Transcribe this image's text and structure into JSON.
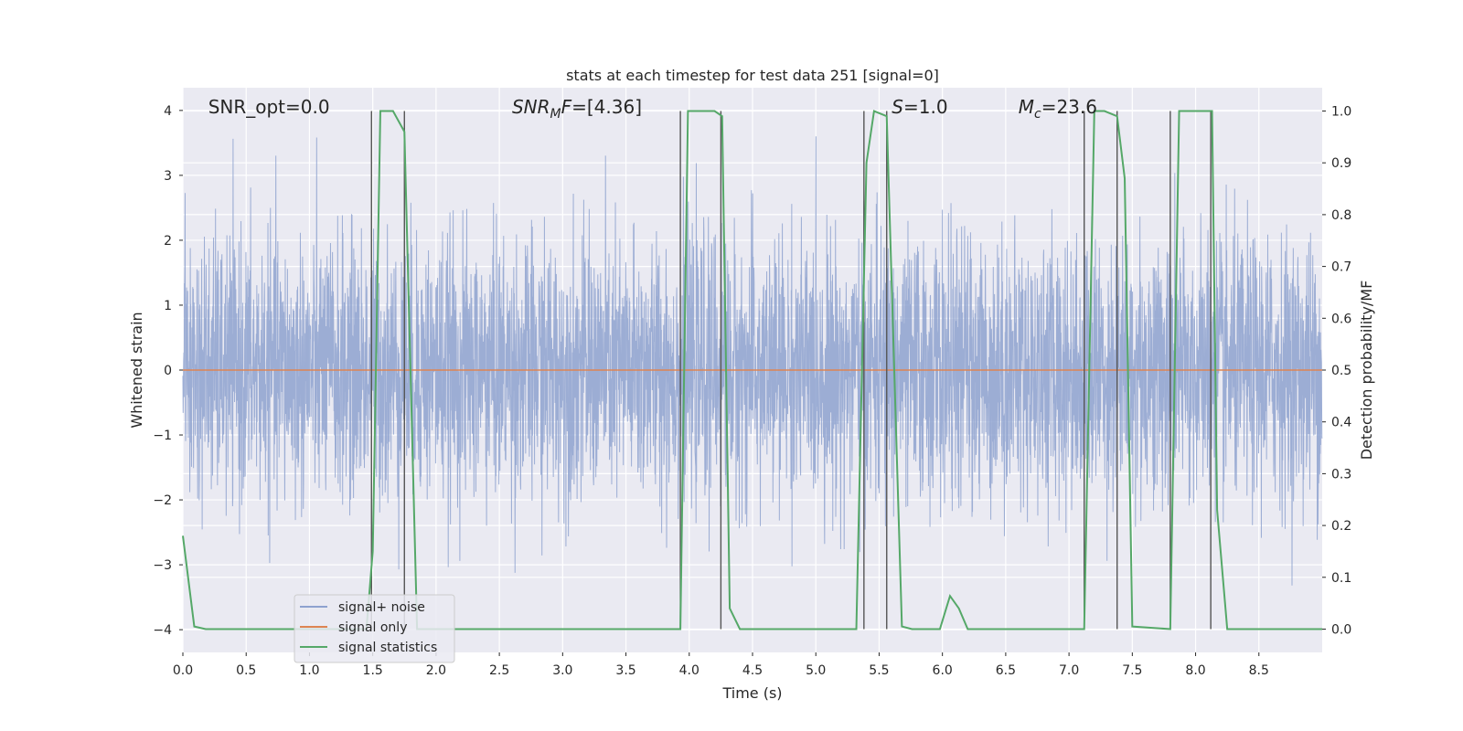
{
  "chart_data": {
    "type": "line",
    "title": "stats at each timestep for test data 251 [signal=0]",
    "xlabel": "Time (s)",
    "ylabel": "Whitened strain",
    "ylabel_right": "Detection probability/MF",
    "xlim": [
      0.0,
      9.0
    ],
    "ylim": [
      -4.35,
      4.35
    ],
    "ylim_right": [
      -0.045,
      1.045
    ],
    "x_ticks": [
      0.0,
      0.5,
      1.0,
      1.5,
      2.0,
      2.5,
      3.0,
      3.5,
      4.0,
      4.5,
      5.0,
      5.5,
      6.0,
      6.5,
      7.0,
      7.5,
      8.0,
      8.5
    ],
    "x_tick_labels": [
      "0.0",
      "0.5",
      "1.0",
      "1.5",
      "2.0",
      "2.5",
      "3.0",
      "3.5",
      "4.0",
      "4.5",
      "5.0",
      "5.5",
      "6.0",
      "6.5",
      "7.0",
      "7.5",
      "8.0",
      "8.5"
    ],
    "y_ticks": [
      4,
      3,
      2,
      1,
      0,
      -1,
      -2,
      -3,
      -4
    ],
    "y_tick_labels": [
      "4",
      "3",
      "2",
      "1",
      "0",
      "−1",
      "−2",
      "−3",
      "−4"
    ],
    "y_ticks_right": [
      1.0,
      0.9,
      0.8,
      0.7,
      0.6,
      0.5,
      0.4,
      0.3,
      0.2,
      0.1,
      0.0
    ],
    "y_tick_labels_right": [
      "1.0",
      "0.9",
      "0.8",
      "0.7",
      "0.6",
      "0.5",
      "0.4",
      "0.3",
      "0.2",
      "0.1",
      "0.0"
    ],
    "grid": true,
    "legend_position": "lower-left",
    "annotations": [
      {
        "text": "SNR_opt=0.0",
        "x": 0.2
      },
      {
        "text": "SNR_MF=[4.36]",
        "x": 2.6
      },
      {
        "text": "S=1.0",
        "x": 5.6
      },
      {
        "text": "M_c=23.6",
        "x": 6.6
      }
    ],
    "noise": {
      "name": "signal+ noise",
      "color": "#8ea2cf",
      "samples": 4608,
      "std": 1.0,
      "upper_envelope": 3.6,
      "lower_envelope": -3.8
    },
    "series": [
      {
        "name": "signal only",
        "color": "#dd8452",
        "x": [
          0.0,
          9.0
        ],
        "y": [
          0.0,
          0.0
        ]
      },
      {
        "name": "signal statistics",
        "color": "#55a868",
        "axis": "right",
        "x": [
          0.0,
          0.09,
          0.18,
          1.45,
          1.5,
          1.56,
          1.66,
          1.75,
          1.85,
          1.95,
          3.93,
          3.99,
          4.05,
          4.2,
          4.26,
          4.32,
          4.4,
          5.32,
          5.4,
          5.46,
          5.56,
          5.6,
          5.68,
          5.76,
          5.98,
          6.06,
          6.13,
          6.2,
          7.12,
          7.2,
          7.28,
          7.38,
          7.44,
          7.5,
          7.8,
          7.87,
          7.93,
          8.13,
          8.17,
          8.25,
          9.0
        ],
        "y": [
          0.18,
          0.005,
          0.0,
          0.0,
          0.15,
          1.0,
          1.0,
          0.96,
          0.0,
          0.0,
          0.0,
          1.0,
          1.0,
          1.0,
          0.99,
          0.04,
          0.0,
          0.0,
          0.9,
          1.0,
          0.99,
          0.66,
          0.005,
          0.0,
          0.0,
          0.064,
          0.04,
          0.0,
          0.0,
          1.0,
          1.0,
          0.99,
          0.87,
          0.005,
          0.0,
          1.0,
          1.0,
          1.0,
          0.23,
          0.0,
          0.0
        ]
      }
    ],
    "vlines": [
      1.49,
      1.75,
      3.93,
      4.25,
      5.38,
      5.56,
      7.12,
      7.38,
      7.8,
      8.12
    ]
  },
  "legend": {
    "items": [
      {
        "label": "signal+ noise",
        "color": "#8ea2cf"
      },
      {
        "label": "signal only",
        "color": "#dd8452"
      },
      {
        "label": "signal statistics",
        "color": "#55a868"
      }
    ]
  }
}
